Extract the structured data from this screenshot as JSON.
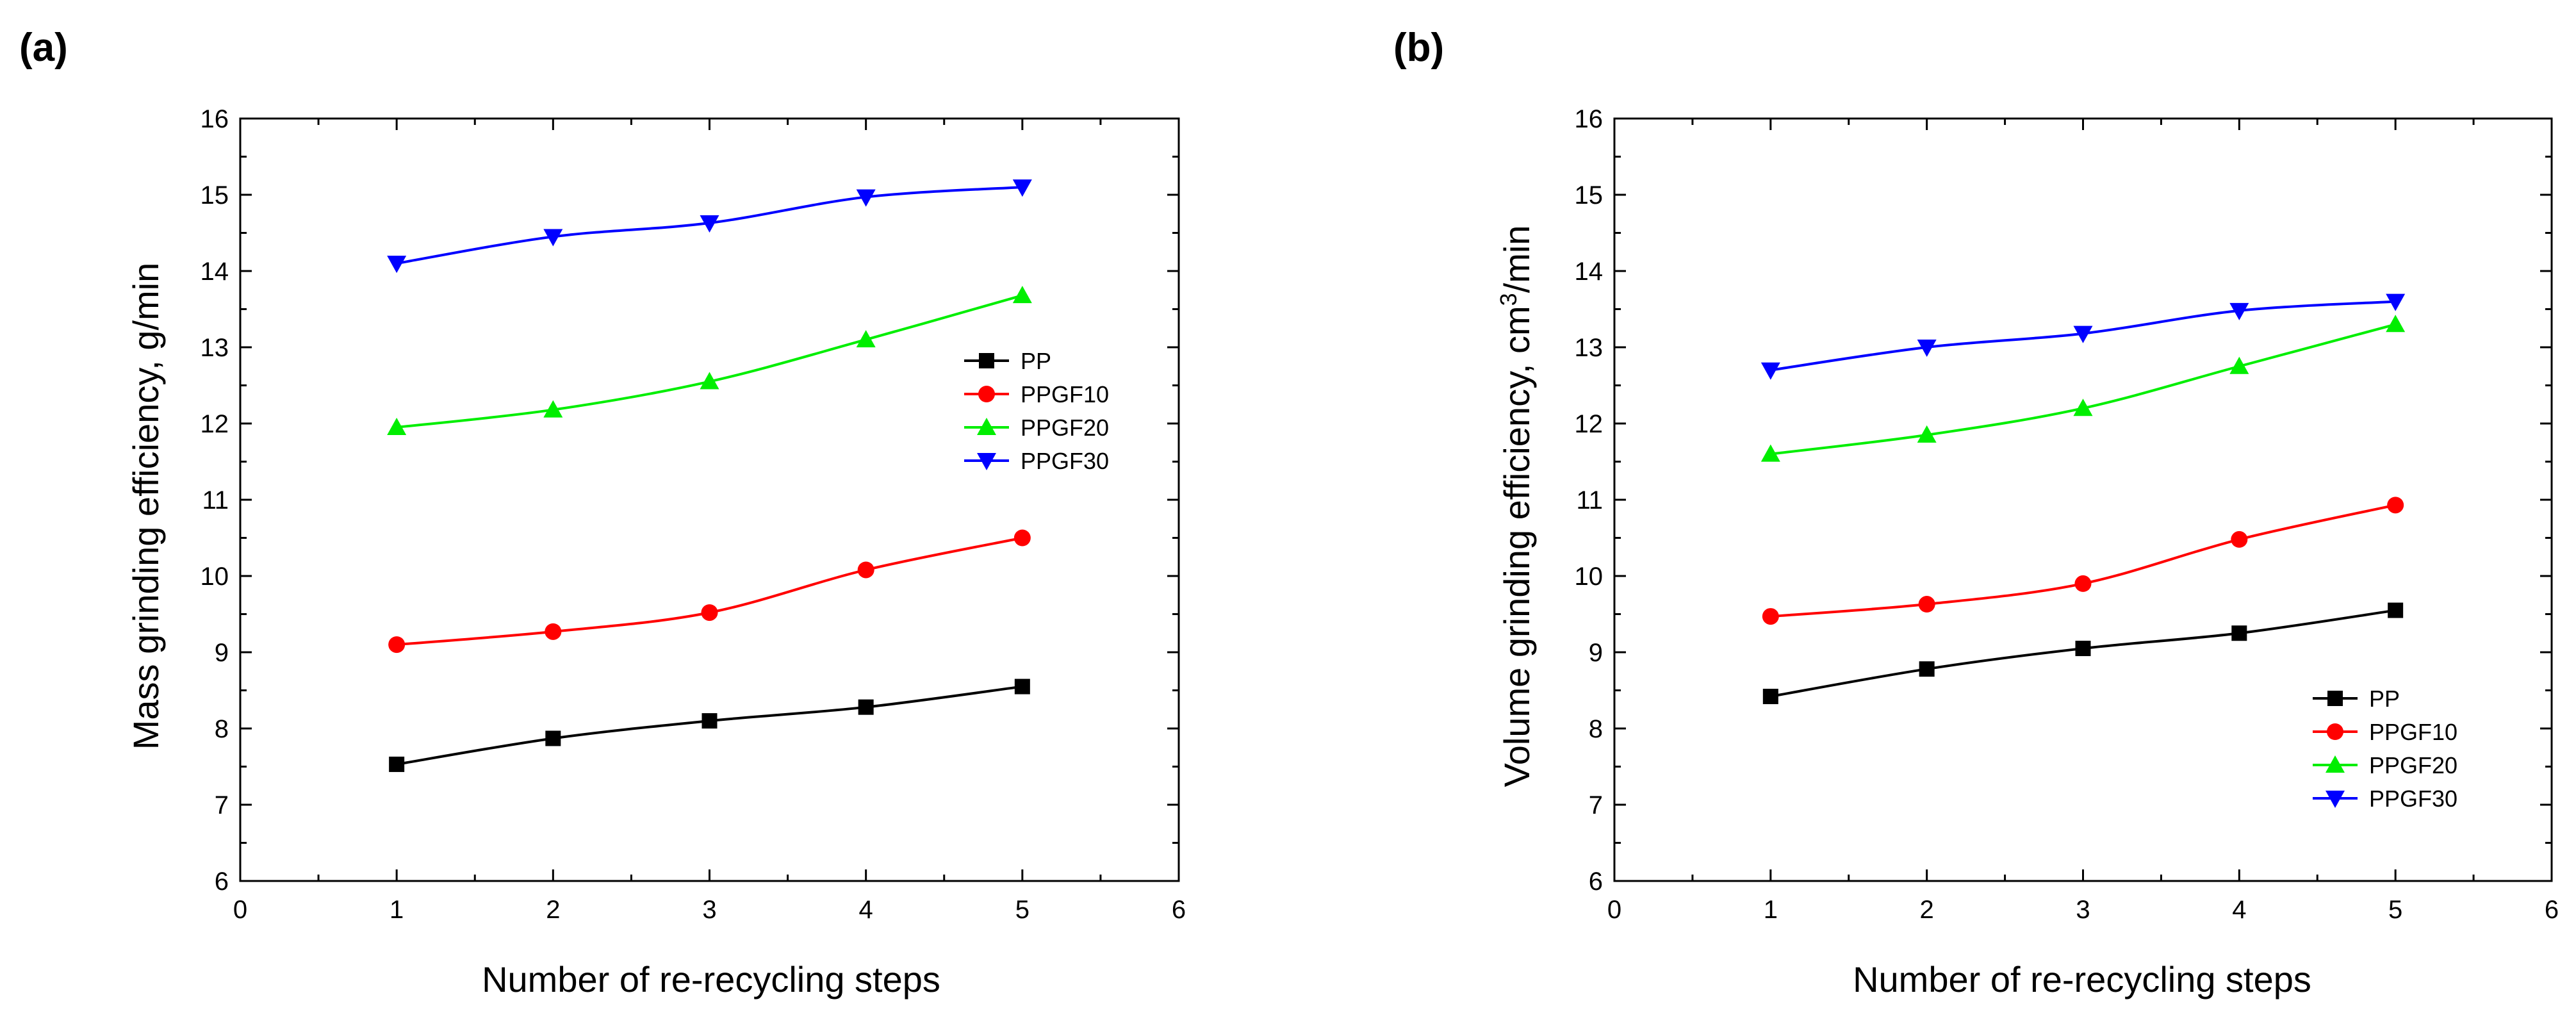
{
  "chart_data": [
    {
      "type": "line",
      "panel_label": "(a)",
      "xlabel": "Number of re-recycling steps",
      "ylabel": "Mass grinding efficiency, g/min",
      "ylabel_sup": "",
      "ylabel_after": "",
      "xlim": [
        0,
        6
      ],
      "ylim": [
        6,
        16
      ],
      "xticks": [
        "0",
        "1",
        "2",
        "3",
        "4",
        "5",
        "6"
      ],
      "yticks": [
        "6",
        "7",
        "8",
        "9",
        "10",
        "11",
        "12",
        "13",
        "14",
        "15",
        "16"
      ],
      "grid": false,
      "legend_position": "right-middle",
      "x": [
        1,
        2,
        3,
        4,
        5
      ],
      "series": [
        {
          "name": "PP",
          "color": "#000000",
          "marker": "square",
          "values": [
            7.53,
            7.87,
            8.1,
            8.28,
            8.55
          ]
        },
        {
          "name": "PPGF10",
          "color": "#ff0000",
          "marker": "circle",
          "values": [
            9.1,
            9.27,
            9.52,
            10.08,
            10.5
          ]
        },
        {
          "name": "PPGF20",
          "color": "#00ee00",
          "marker": "triangle-up",
          "values": [
            11.95,
            12.18,
            12.55,
            13.1,
            13.68
          ]
        },
        {
          "name": "PPGF30",
          "color": "#0000ff",
          "marker": "triangle-down",
          "values": [
            14.1,
            14.45,
            14.63,
            14.97,
            15.1
          ]
        }
      ]
    },
    {
      "type": "line",
      "panel_label": "(b)",
      "xlabel": "Number of re-recycling steps",
      "ylabel": "Volume grinding efficiency, cm",
      "ylabel_sup": "3",
      "ylabel_after": "/min",
      "xlim": [
        0,
        6
      ],
      "ylim": [
        6,
        16
      ],
      "xticks": [
        "0",
        "1",
        "2",
        "3",
        "4",
        "5",
        "6"
      ],
      "yticks": [
        "6",
        "7",
        "8",
        "9",
        "10",
        "11",
        "12",
        "13",
        "14",
        "15",
        "16"
      ],
      "grid": false,
      "legend_position": "bottom-right",
      "x": [
        1,
        2,
        3,
        4,
        5
      ],
      "series": [
        {
          "name": "PP",
          "color": "#000000",
          "marker": "square",
          "values": [
            8.42,
            8.78,
            9.05,
            9.25,
            9.55
          ]
        },
        {
          "name": "PPGF10",
          "color": "#ff0000",
          "marker": "circle",
          "values": [
            9.47,
            9.63,
            9.9,
            10.48,
            10.93
          ]
        },
        {
          "name": "PPGF20",
          "color": "#00ee00",
          "marker": "triangle-up",
          "values": [
            11.6,
            11.85,
            12.2,
            12.75,
            13.3
          ]
        },
        {
          "name": "PPGF30",
          "color": "#0000ff",
          "marker": "triangle-down",
          "values": [
            12.7,
            13.0,
            13.18,
            13.48,
            13.6
          ]
        }
      ]
    }
  ]
}
